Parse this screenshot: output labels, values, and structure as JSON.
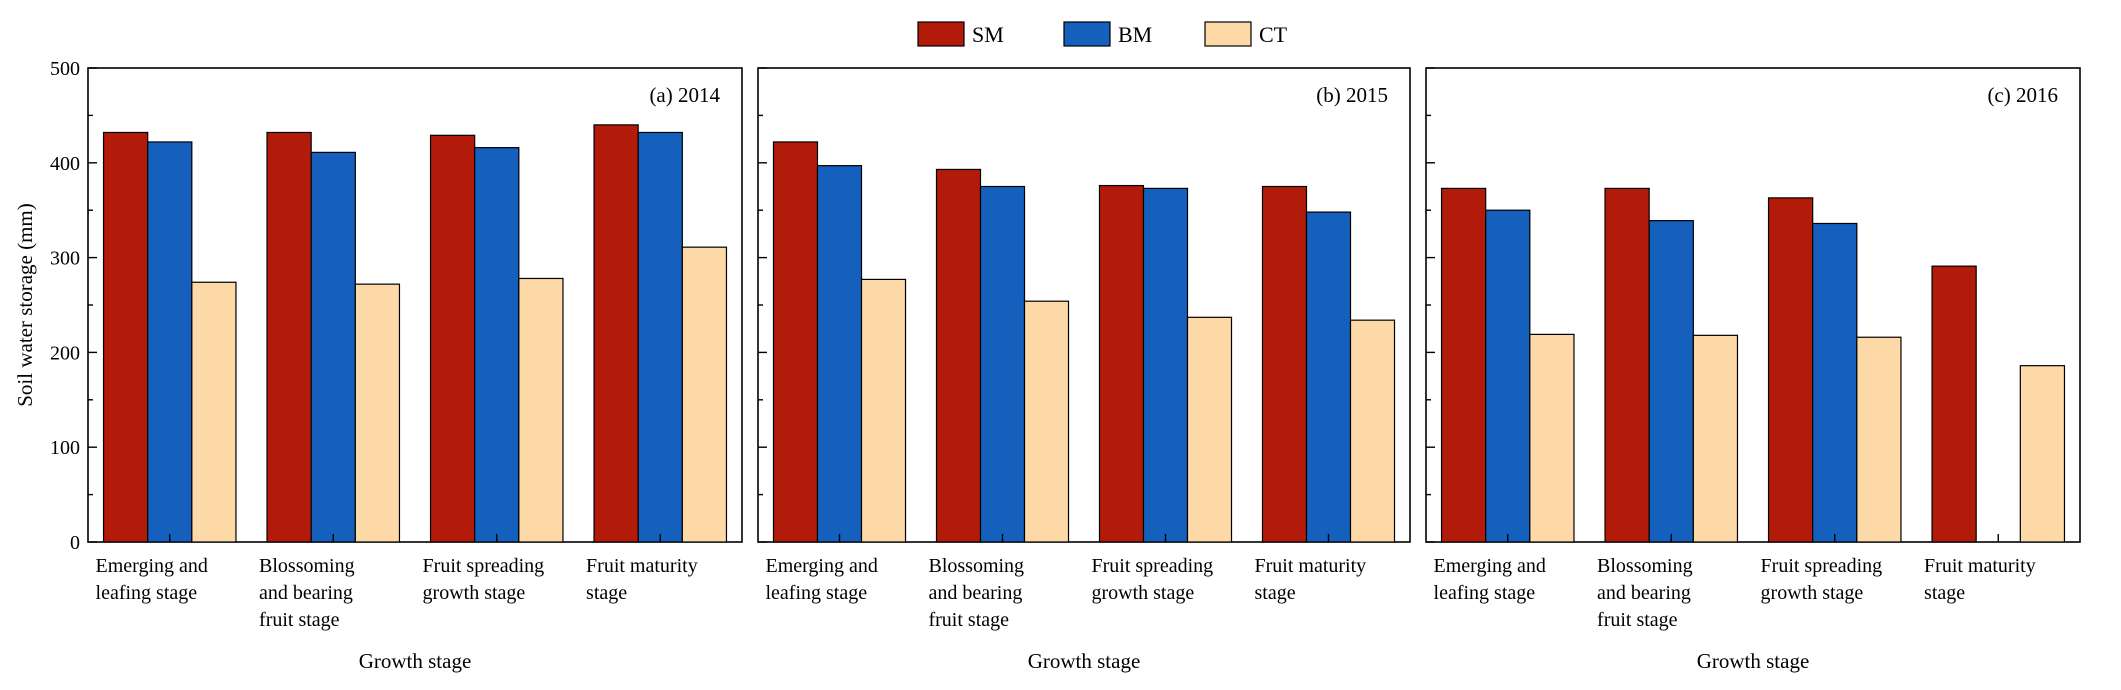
{
  "chart_data": {
    "type": "bar",
    "ylabel": "Soil water storage (mm)",
    "xlabel": "Growth stage",
    "ylim": [
      0,
      500
    ],
    "yticks": [
      0,
      100,
      200,
      300,
      400,
      500
    ],
    "legend_position": "top-center",
    "series_meta": [
      {
        "name": "SM",
        "color": "#B21B0A"
      },
      {
        "name": "BM",
        "color": "#1560BD"
      },
      {
        "name": "CT",
        "color": "#FDD9A8"
      }
    ],
    "panels": [
      {
        "tag": "(a) 2014",
        "categories": [
          [
            "Emerging and",
            "leafing stage"
          ],
          [
            "Blossoming",
            "and bearing",
            "fruit stage"
          ],
          [
            "Fruit spreading",
            "growth stage"
          ],
          [
            "Fruit maturity",
            "stage"
          ]
        ],
        "series": [
          {
            "name": "SM",
            "values": [
              432,
              432,
              429,
              440
            ]
          },
          {
            "name": "BM",
            "values": [
              422,
              411,
              416,
              432
            ]
          },
          {
            "name": "CT",
            "values": [
              274,
              272,
              278,
              311
            ]
          }
        ]
      },
      {
        "tag": "(b) 2015",
        "categories": [
          [
            "Emerging and",
            "leafing stage"
          ],
          [
            "Blossoming",
            "and bearing",
            "fruit stage"
          ],
          [
            "Fruit spreading",
            "growth stage"
          ],
          [
            "Fruit maturity",
            "stage"
          ]
        ],
        "series": [
          {
            "name": "SM",
            "values": [
              422,
              393,
              376,
              375
            ]
          },
          {
            "name": "BM",
            "values": [
              397,
              375,
              373,
              348
            ]
          },
          {
            "name": "CT",
            "values": [
              277,
              254,
              237,
              234
            ]
          }
        ]
      },
      {
        "tag": "(c) 2016",
        "categories": [
          [
            "Emerging and",
            "leafing stage"
          ],
          [
            "Blossoming",
            "and bearing",
            "fruit stage"
          ],
          [
            "Fruit spreading",
            "growth stage"
          ],
          [
            "Fruit maturity",
            "stage"
          ]
        ],
        "series": [
          {
            "name": "SM",
            "values": [
              373,
              373,
              363,
              291
            ]
          },
          {
            "name": "BM",
            "values": [
              350,
              339,
              336,
              null
            ]
          },
          {
            "name": "CT",
            "values": [
              219,
              218,
              216,
              186
            ]
          }
        ]
      }
    ]
  }
}
